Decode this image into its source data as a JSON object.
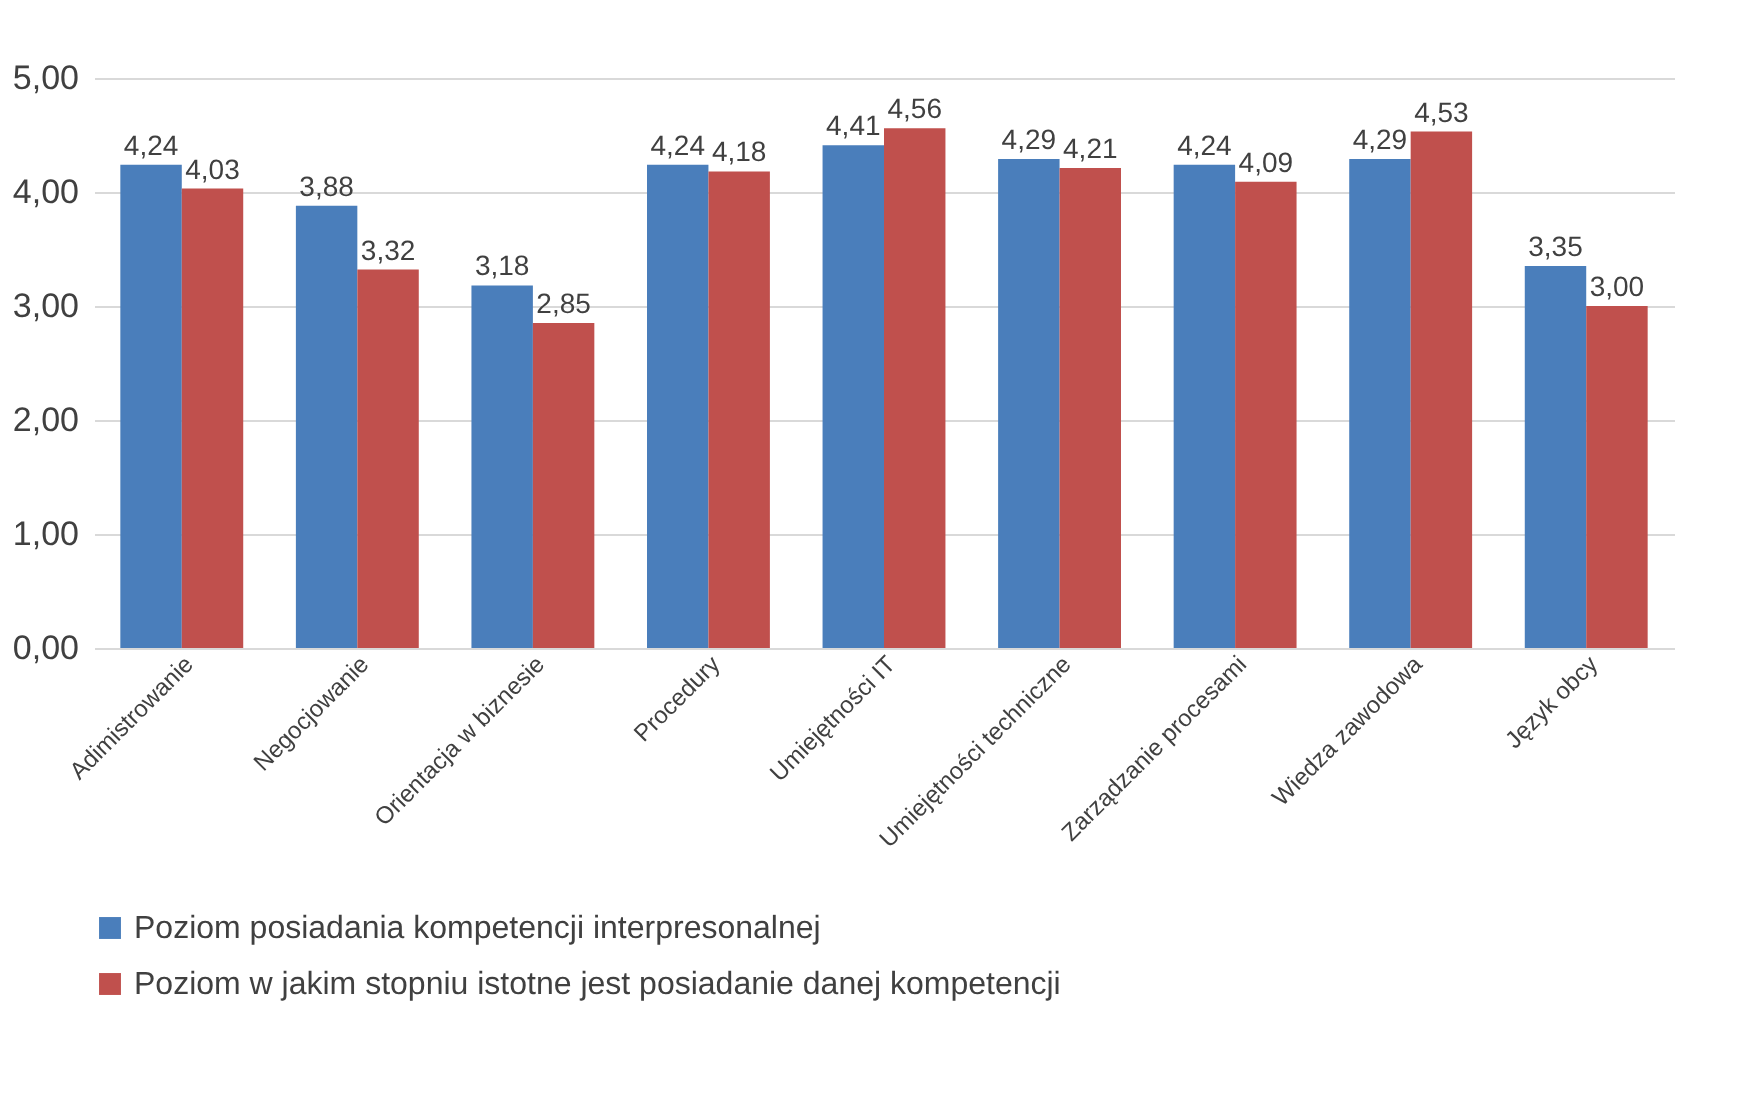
{
  "chart_data": {
    "type": "bar",
    "categories": [
      "Adimistrowanie",
      "Negocjowanie",
      "Orientacja w biznesie",
      "Procedury",
      "Umiejętności IT",
      "Umiejętności techniczne",
      "Zarządzanie procesami",
      "Wiedza zawodowa",
      "Język obcy"
    ],
    "series": [
      {
        "name": "Poziom posiadania kompetencji interpresonalnej",
        "color": "#4a7ebb",
        "values": [
          4.24,
          3.88,
          3.18,
          4.24,
          4.41,
          4.29,
          4.24,
          4.29,
          3.35
        ],
        "value_labels": [
          "4,24",
          "3,88",
          "3,18",
          "4,24",
          "4,41",
          "4,29",
          "4,24",
          "4,29",
          "3,35"
        ]
      },
      {
        "name": "Poziom w jakim stopniu istotne jest posiadanie danej kompetencji",
        "color": "#c0504d",
        "values": [
          4.03,
          3.32,
          2.85,
          4.18,
          4.56,
          4.21,
          4.09,
          4.53,
          3.0
        ],
        "value_labels": [
          "4,03",
          "3,32",
          "2,85",
          "4,18",
          "4,56",
          "4,21",
          "4,09",
          "4,53",
          "3,00"
        ]
      }
    ],
    "ylim": [
      0,
      5
    ],
    "yticks": [
      {
        "value": 0,
        "label": "0,00"
      },
      {
        "value": 1,
        "label": "1,00"
      },
      {
        "value": 2,
        "label": "2,00"
      },
      {
        "value": 3,
        "label": "3,00"
      },
      {
        "value": 4,
        "label": "4,00"
      },
      {
        "value": 5,
        "label": "5,00"
      }
    ],
    "grid": "y",
    "legend": "bottom"
  }
}
